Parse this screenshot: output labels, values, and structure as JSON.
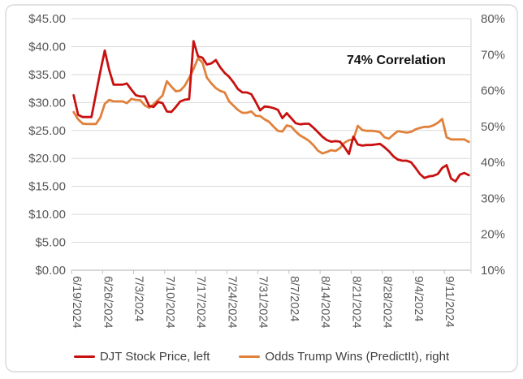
{
  "window": {
    "background": "#FFFFFF",
    "border_color": "#D9D9D9"
  },
  "chart": {
    "annotation": "74% Correlation",
    "legend": [
      {
        "label": "DJT Stock Price, left",
        "color": "#C81010"
      },
      {
        "label": "Odds Trump Wins (PredictIt), right",
        "color": "#E0813C"
      }
    ],
    "colors": {
      "gridline": "#D9D9D9",
      "axis_line": "#BFBFBF",
      "tick_label": "#595959",
      "legend_text": "#3F3F3F",
      "annotation_text": "#111111"
    }
  },
  "chart_data": {
    "type": "line",
    "title": "",
    "annotation": "74% Correlation",
    "legend_position": "bottom",
    "grid": "horizontal",
    "x_tick_labels": [
      "6/19/2024",
      "6/26/2024",
      "7/3/2024",
      "7/10/2024",
      "7/17/2024",
      "7/24/2024",
      "7/31/2024",
      "8/7/2024",
      "8/14/2024",
      "8/21/2024",
      "8/28/2024",
      "9/4/2024",
      "9/11/2024"
    ],
    "x": [
      "6/19/2024",
      "6/20/2024",
      "6/21/2024",
      "6/22/2024",
      "6/23/2024",
      "6/24/2024",
      "6/25/2024",
      "6/26/2024",
      "6/27/2024",
      "6/28/2024",
      "6/29/2024",
      "6/30/2024",
      "7/1/2024",
      "7/2/2024",
      "7/3/2024",
      "7/4/2024",
      "7/5/2024",
      "7/6/2024",
      "7/7/2024",
      "7/8/2024",
      "7/9/2024",
      "7/10/2024",
      "7/11/2024",
      "7/12/2024",
      "7/13/2024",
      "7/14/2024",
      "7/15/2024",
      "7/16/2024",
      "7/17/2024",
      "7/18/2024",
      "7/19/2024",
      "7/20/2024",
      "7/21/2024",
      "7/22/2024",
      "7/23/2024",
      "7/24/2024",
      "7/25/2024",
      "7/26/2024",
      "7/27/2024",
      "7/28/2024",
      "7/29/2024",
      "7/30/2024",
      "7/31/2024",
      "8/1/2024",
      "8/2/2024",
      "8/3/2024",
      "8/4/2024",
      "8/5/2024",
      "8/6/2024",
      "8/7/2024",
      "8/8/2024",
      "8/9/2024",
      "8/10/2024",
      "8/11/2024",
      "8/12/2024",
      "8/13/2024",
      "8/14/2024",
      "8/15/2024",
      "8/16/2024",
      "8/17/2024",
      "8/18/2024",
      "8/19/2024",
      "8/20/2024",
      "8/21/2024",
      "8/22/2024",
      "8/23/2024",
      "8/24/2024",
      "8/25/2024",
      "8/26/2024",
      "8/27/2024",
      "8/28/2024",
      "8/29/2024",
      "8/30/2024",
      "8/31/2024",
      "9/1/2024",
      "9/2/2024",
      "9/3/2024",
      "9/4/2024",
      "9/5/2024",
      "9/6/2024",
      "9/7/2024",
      "9/8/2024",
      "9/9/2024",
      "9/10/2024",
      "9/11/2024",
      "9/12/2024",
      "9/13/2024",
      "9/14/2024",
      "9/15/2024",
      "9/16/2024"
    ],
    "series": [
      {
        "name": "DJT Stock Price, left",
        "axis": "left",
        "color": "#C81010",
        "values": [
          31.3,
          27.8,
          27.4,
          27.4,
          27.4,
          31.5,
          35.5,
          39.3,
          35.8,
          33.2,
          33.2,
          33.2,
          33.4,
          32.3,
          31.3,
          31.1,
          31.1,
          29.4,
          29.2,
          30.1,
          29.9,
          28.4,
          28.3,
          29.2,
          30.2,
          30.5,
          30.6,
          41.0,
          38.3,
          38.0,
          36.8,
          37.0,
          37.6,
          36.3,
          35.3,
          34.6,
          33.6,
          32.4,
          31.8,
          31.8,
          31.5,
          30.1,
          28.6,
          29.3,
          29.2,
          29.0,
          28.7,
          27.2,
          28.1,
          27.2,
          26.3,
          26.1,
          26.2,
          26.2,
          25.5,
          24.7,
          23.9,
          23.3,
          23.0,
          23.1,
          23.0,
          22.0,
          20.8,
          23.9,
          22.5,
          22.3,
          22.4,
          22.4,
          22.5,
          22.6,
          22.0,
          21.3,
          20.4,
          19.8,
          19.6,
          19.6,
          19.3,
          18.3,
          17.2,
          16.5,
          16.8,
          16.9,
          17.2,
          18.3,
          18.8,
          16.4,
          15.9,
          17.1,
          17.4,
          17.0
        ]
      },
      {
        "name": "Odds Trump Wins (PredictIt), right",
        "axis": "right",
        "color": "#E0813C",
        "values": [
          54.0,
          52.0,
          50.8,
          50.7,
          50.7,
          50.7,
          52.5,
          56.3,
          57.4,
          57.0,
          57.0,
          57.0,
          56.5,
          57.7,
          57.4,
          57.3,
          55.9,
          55.2,
          56.2,
          57.4,
          58.6,
          62.6,
          61.1,
          59.8,
          60.0,
          61.3,
          63.5,
          66.0,
          69.0,
          67.8,
          63.6,
          62.0,
          60.7,
          59.9,
          59.5,
          57.0,
          55.8,
          54.6,
          53.8,
          53.8,
          54.2,
          53.0,
          52.9,
          52.0,
          51.3,
          50.0,
          48.8,
          48.6,
          50.3,
          50.0,
          48.6,
          47.5,
          46.8,
          46.0,
          44.8,
          43.3,
          42.5,
          42.9,
          43.4,
          43.2,
          44.0,
          45.5,
          46.2,
          46.4,
          50.2,
          49.0,
          48.8,
          48.8,
          48.7,
          48.4,
          47.0,
          46.6,
          47.7,
          48.7,
          48.5,
          48.3,
          48.5,
          49.2,
          49.6,
          49.9,
          49.9,
          50.3,
          51.0,
          52.1,
          47.0,
          46.4,
          46.4,
          46.4,
          46.4,
          45.7
        ]
      }
    ],
    "left_axis": {
      "min": 0,
      "max": 45,
      "step": 5,
      "tick_labels": [
        "$0.00",
        "$5.00",
        "$10.00",
        "$15.00",
        "$20.00",
        "$25.00",
        "$30.00",
        "$35.00",
        "$40.00",
        "$45.00"
      ]
    },
    "right_axis": {
      "min": 10,
      "max": 80,
      "step": 10,
      "tick_labels": [
        "10%",
        "20%",
        "30%",
        "40%",
        "50%",
        "60%",
        "70%",
        "80%"
      ]
    }
  }
}
